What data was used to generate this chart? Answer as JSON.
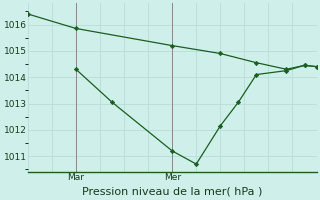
{
  "title": "Pression niveau de la mer( hPa )",
  "bg_color": "#cff0ea",
  "grid_color": "#b8deda",
  "line_color": "#1a5e20",
  "marker_color": "#1a5e20",
  "vline_color": "#888888",
  "ylim": [
    1010.4,
    1016.8
  ],
  "yticks": [
    1011,
    1012,
    1013,
    1014,
    1015,
    1016
  ],
  "xlim": [
    0,
    48
  ],
  "vline_positions": [
    8,
    24
  ],
  "x_day_labels": [
    {
      "label": "Mar",
      "x": 8
    },
    {
      "label": "Mer",
      "x": 24
    }
  ],
  "series1": {
    "x": [
      0,
      8,
      24,
      32,
      38,
      43,
      46,
      48
    ],
    "y": [
      1016.4,
      1015.85,
      1015.2,
      1014.9,
      1014.55,
      1014.3,
      1014.45,
      1014.4
    ]
  },
  "series2": {
    "x": [
      8,
      14,
      24,
      28,
      32,
      35,
      38,
      43,
      46,
      48
    ],
    "y": [
      1014.3,
      1013.05,
      1011.2,
      1010.7,
      1012.15,
      1013.05,
      1014.1,
      1014.25,
      1014.45,
      1014.4
    ]
  },
  "xlabel_fontsize": 8.0,
  "tick_fontsize": 6.5
}
